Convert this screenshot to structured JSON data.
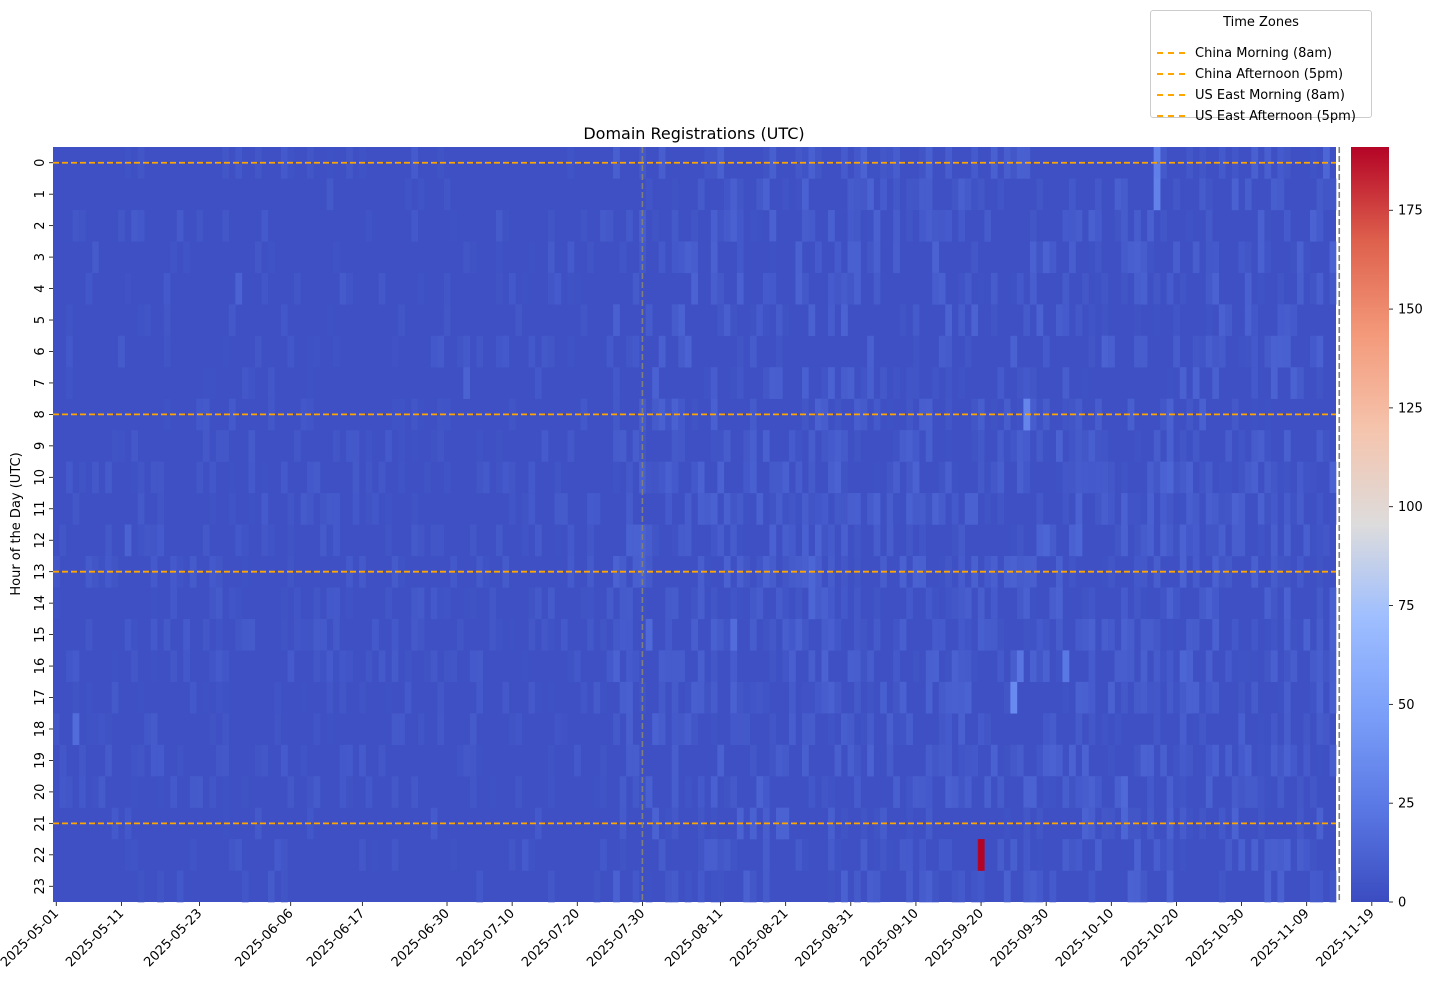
{
  "chart_data": {
    "type": "heatmap",
    "title": "Domain Registrations (UTC)",
    "ylabel": "Hour of the Day (UTC)",
    "xlabel": "",
    "x_tick_labels": [
      "2025-05-01",
      "2025-05-11",
      "2025-05-23",
      "2025-06-06",
      "2025-06-17",
      "2025-06-30",
      "2025-07-10",
      "2025-07-20",
      "2025-07-30",
      "2025-08-11",
      "2025-08-21",
      "2025-08-31",
      "2025-09-10",
      "2025-09-20",
      "2025-09-30",
      "2025-10-10",
      "2025-10-20",
      "2025-10-30",
      "2025-11-09",
      "2025-11-19"
    ],
    "y_tick_labels": [
      "0",
      "1",
      "2",
      "3",
      "4",
      "5",
      "6",
      "7",
      "8",
      "9",
      "10",
      "11",
      "12",
      "13",
      "14",
      "15",
      "16",
      "17",
      "18",
      "19",
      "20",
      "21",
      "22",
      "23"
    ],
    "num_columns": 197,
    "colorbar": {
      "min": 0,
      "max": 191,
      "ticks": [
        0,
        25,
        50,
        75,
        100,
        125,
        150,
        175
      ],
      "colormap": "coolwarm"
    },
    "background_value": 2,
    "hotspots": [
      {
        "col": 142,
        "row": 22,
        "value": 191
      },
      {
        "col": 169,
        "row": 0,
        "value": 28
      },
      {
        "col": 169,
        "row": 1,
        "value": 30
      },
      {
        "col": 147,
        "row": 17,
        "value": 35
      },
      {
        "col": 148,
        "row": 16,
        "value": 22
      },
      {
        "col": 155,
        "row": 16,
        "value": 24
      },
      {
        "col": 149,
        "row": 8,
        "value": 32
      },
      {
        "col": 3,
        "row": 18,
        "value": 18
      },
      {
        "col": 104,
        "row": 15,
        "value": 18
      },
      {
        "col": 91,
        "row": 15,
        "value": 16
      },
      {
        "col": 116,
        "row": 13,
        "value": 14
      },
      {
        "col": 116,
        "row": 14,
        "value": 14
      },
      {
        "col": 164,
        "row": 20,
        "value": 16
      },
      {
        "col": 164,
        "row": 21,
        "value": 14
      },
      {
        "col": 132,
        "row": 10,
        "value": 12
      },
      {
        "col": 152,
        "row": 12,
        "value": 14
      },
      {
        "col": 154,
        "row": 9,
        "value": 12
      },
      {
        "col": 157,
        "row": 11,
        "value": 12
      },
      {
        "col": 181,
        "row": 11,
        "value": 12
      },
      {
        "col": 171,
        "row": 10,
        "value": 14
      },
      {
        "col": 173,
        "row": 16,
        "value": 14
      },
      {
        "col": 157,
        "row": 12,
        "value": 14
      },
      {
        "col": 28,
        "row": 4,
        "value": 12
      },
      {
        "col": 63,
        "row": 7,
        "value": 12
      },
      {
        "col": 137,
        "row": 5,
        "value": 12
      },
      {
        "col": 119,
        "row": 7,
        "value": 12
      },
      {
        "col": 124,
        "row": 22,
        "value": 10
      },
      {
        "col": 108,
        "row": 20,
        "value": 12
      },
      {
        "col": 165,
        "row": 23,
        "value": 12
      },
      {
        "col": 11,
        "row": 12,
        "value": 12
      },
      {
        "col": 181,
        "row": 12,
        "value": 10
      },
      {
        "col": 195,
        "row": 0,
        "value": 14
      }
    ],
    "reference_lines": {
      "horizontal_hours": [
        0.5,
        8.5,
        13.5,
        21.5
      ],
      "vertical_dates": [
        "2025-07-30",
        "2025-11-14"
      ],
      "horizontal_color": "#ffa500",
      "vertical_color": "#808080"
    },
    "legend": {
      "title": "Time Zones",
      "placement": "top-right",
      "entries": [
        "China Morning (8am)",
        "China Afternoon (5pm)",
        "US East Morning (8am)",
        "US East Afternoon (5pm)"
      ],
      "color": "#ffa500"
    }
  }
}
